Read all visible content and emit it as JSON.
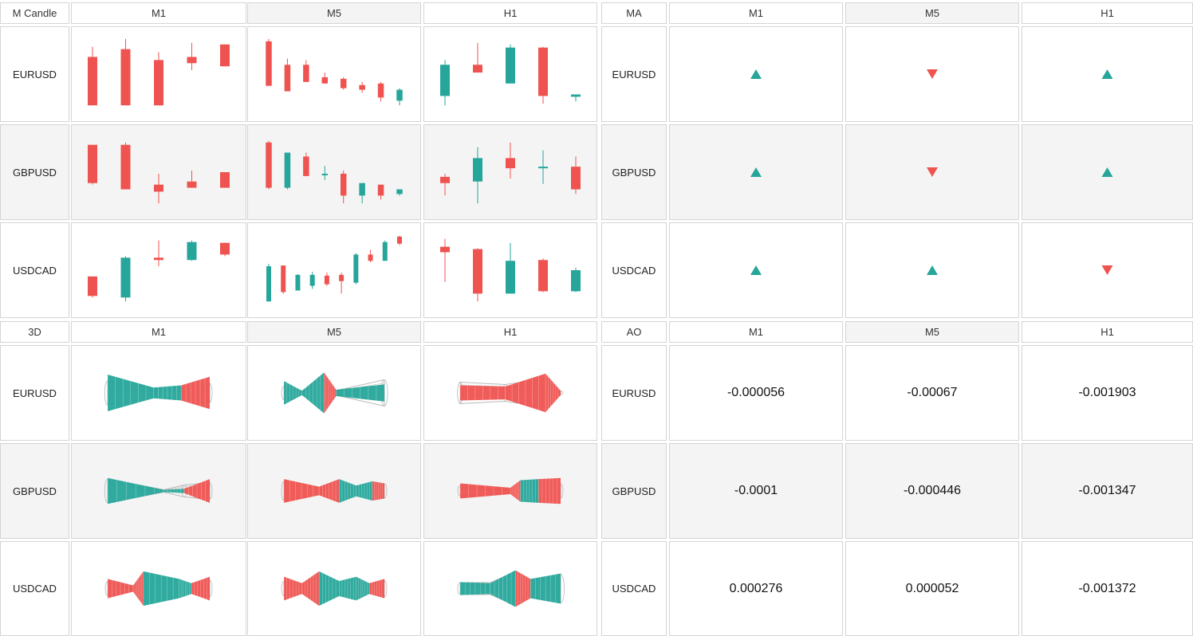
{
  "colors": {
    "bull": "#26a69a",
    "bear": "#ef5350",
    "bull_dark": "#1e7f74",
    "bear_dark": "#c03a3a",
    "wire": "#b8b8b8"
  },
  "timeframes": [
    "M1",
    "M5",
    "H1"
  ],
  "symbols": [
    "EURUSD",
    "GBPUSD",
    "USDCAD"
  ],
  "panels": {
    "candle": {
      "title": "M Candle",
      "candles": {
        "EURUSD": {
          "M1": [
            [
              0.35,
              0.85,
              0.72,
              0.1
            ],
            [
              0.12,
              0.95,
              0.82,
              0.1
            ],
            [
              0.18,
              0.78,
              0.68,
              0.1
            ],
            [
              0.55,
              0.9,
              0.72,
              0.64
            ],
            [
              0.6,
              0.88,
              0.88,
              0.6
            ]
          ],
          "M5": [
            [
              0.4,
              0.95,
              0.92,
              0.35
            ],
            [
              0.35,
              0.7,
              0.62,
              0.28
            ],
            [
              0.4,
              0.68,
              0.62,
              0.4
            ],
            [
              0.38,
              0.52,
              0.46,
              0.38
            ],
            [
              0.3,
              0.46,
              0.44,
              0.32
            ],
            [
              0.26,
              0.4,
              0.36,
              0.3
            ],
            [
              0.15,
              0.4,
              0.38,
              0.2
            ],
            [
              0.1,
              0.32,
              0.16,
              0.3
            ]
          ],
          "H1": [
            [
              0.1,
              0.68,
              0.22,
              0.62
            ],
            [
              0.55,
              0.9,
              0.62,
              0.52
            ],
            [
              0.38,
              0.88,
              0.38,
              0.84
            ],
            [
              0.12,
              0.85,
              0.84,
              0.22
            ],
            [
              0.15,
              0.24,
              0.21,
              0.24
            ]
          ]
        },
        "GBPUSD": {
          "M1": [
            [
              0.34,
              0.85,
              0.85,
              0.36
            ],
            [
              0.28,
              0.88,
              0.85,
              0.28
            ],
            [
              0.1,
              0.48,
              0.34,
              0.25
            ],
            [
              0.3,
              0.52,
              0.38,
              0.3
            ],
            [
              0.3,
              0.5,
              0.5,
              0.3
            ]
          ],
          "M5": [
            [
              0.28,
              0.9,
              0.88,
              0.3
            ],
            [
              0.28,
              0.75,
              0.3,
              0.75
            ],
            [
              0.45,
              0.75,
              0.7,
              0.45
            ],
            [
              0.4,
              0.58,
              0.48,
              0.48
            ],
            [
              0.1,
              0.52,
              0.48,
              0.2
            ],
            [
              0.1,
              0.36,
              0.2,
              0.36
            ],
            [
              0.15,
              0.34,
              0.34,
              0.2
            ],
            [
              0.2,
              0.28,
              0.22,
              0.28
            ]
          ],
          "H1": [
            [
              0.2,
              0.48,
              0.44,
              0.36
            ],
            [
              0.1,
              0.82,
              0.38,
              0.68
            ],
            [
              0.42,
              0.88,
              0.68,
              0.55
            ],
            [
              0.35,
              0.78,
              0.57,
              0.57
            ],
            [
              0.22,
              0.7,
              0.57,
              0.28
            ]
          ]
        },
        "USDCAD": {
          "M1": [
            [
              0.15,
              0.42,
              0.42,
              0.17
            ],
            [
              0.1,
              0.68,
              0.15,
              0.66
            ],
            [
              0.55,
              0.88,
              0.66,
              0.63
            ],
            [
              0.62,
              0.88,
              0.63,
              0.86
            ],
            [
              0.68,
              0.85,
              0.85,
              0.7
            ]
          ],
          "M5": [
            [
              0.1,
              0.58,
              0.1,
              0.55
            ],
            [
              0.2,
              0.56,
              0.56,
              0.22
            ],
            [
              0.24,
              0.45,
              0.24,
              0.44
            ],
            [
              0.26,
              0.48,
              0.3,
              0.44
            ],
            [
              0.3,
              0.47,
              0.43,
              0.32
            ],
            [
              0.2,
              0.47,
              0.44,
              0.36
            ],
            [
              0.32,
              0.72,
              0.34,
              0.7
            ],
            [
              0.6,
              0.76,
              0.7,
              0.62
            ],
            [
              0.62,
              0.88,
              0.62,
              0.86
            ],
            [
              0.82,
              0.94,
              0.93,
              0.84
            ]
          ],
          "H1": [
            [
              0.35,
              0.9,
              0.8,
              0.73
            ],
            [
              0.1,
              0.78,
              0.77,
              0.2
            ],
            [
              0.2,
              0.85,
              0.2,
              0.62
            ],
            [
              0.22,
              0.65,
              0.63,
              0.23
            ],
            [
              0.22,
              0.53,
              0.23,
              0.5
            ]
          ]
        }
      }
    },
    "ma": {
      "title": "MA",
      "signals": {
        "EURUSD": [
          "up",
          "down",
          "up"
        ],
        "GBPUSD": [
          "up",
          "down",
          "up"
        ],
        "USDCAD": [
          "up",
          "up",
          "down"
        ]
      }
    },
    "d3": {
      "title": "3D",
      "shapes": {
        "EURUSD": {
          "M1": [
            [
              [
                0.0,
                0.5,
                0.85,
                1
              ],
              [
                0.45,
                0.2,
                0.25,
                1
              ],
              [
                0.72,
                0.22,
                0.35,
                2
              ],
              [
                1.0,
                0.4,
                0.75,
                1
              ]
            ]
          ],
          "M5": [
            [
              [
                0.0,
                0.28,
                0.55,
                1
              ],
              [
                0.18,
                0.08,
                0.1,
                1
              ],
              [
                0.4,
                0.55,
                0.95,
                2
              ],
              [
                0.52,
                0.1,
                0.15,
                1
              ],
              [
                1.0,
                0.55,
                0.4,
                1
              ]
            ]
          ],
          "H1": [
            [
              [
                0.0,
                0.45,
                0.35,
                2
              ],
              [
                0.45,
                0.35,
                0.3,
                2
              ],
              [
                0.85,
                0.6,
                0.9,
                2
              ],
              [
                1.0,
                0.08,
                0.1,
                2
              ]
            ]
          ]
        },
        "GBPUSD": {
          "M1": [
            [
              [
                0.0,
                0.5,
                0.6,
                1
              ],
              [
                0.55,
                0.05,
                0.05,
                1
              ],
              [
                0.75,
                0.25,
                0.1,
                2
              ],
              [
                1.0,
                0.35,
                0.55,
                1
              ]
            ]
          ],
          "M5": [
            [
              [
                0.0,
                0.4,
                0.55,
                2
              ],
              [
                0.35,
                0.15,
                0.2,
                2
              ],
              [
                0.55,
                0.4,
                0.55,
                1
              ],
              [
                0.72,
                0.2,
                0.25,
                1
              ],
              [
                0.88,
                0.35,
                0.45,
                2
              ],
              [
                1.0,
                0.3,
                0.35,
                2
              ]
            ]
          ],
          "H1": [
            [
              [
                0.0,
                0.22,
                0.35,
                2
              ],
              [
                0.5,
                0.08,
                0.15,
                2
              ],
              [
                0.6,
                0.4,
                0.5,
                1
              ],
              [
                0.78,
                0.4,
                0.55,
                2
              ],
              [
                1.0,
                0.3,
                0.6,
                2
              ]
            ]
          ]
        },
        "USDCAD": {
          "M1": [
            [
              [
                0.0,
                0.3,
                0.45,
                2
              ],
              [
                0.25,
                0.1,
                0.15,
                2
              ],
              [
                0.35,
                0.5,
                0.8,
                1
              ],
              [
                0.7,
                0.35,
                0.45,
                1
              ],
              [
                0.82,
                0.2,
                0.25,
                2
              ],
              [
                1.0,
                0.35,
                0.55,
                1
              ]
            ]
          ],
          "M5": [
            [
              [
                0.0,
                0.3,
                0.55,
                2
              ],
              [
                0.18,
                0.2,
                0.25,
                2
              ],
              [
                0.35,
                0.55,
                0.8,
                1
              ],
              [
                0.55,
                0.2,
                0.35,
                1
              ],
              [
                0.72,
                0.4,
                0.55,
                1
              ],
              [
                0.85,
                0.2,
                0.25,
                2
              ],
              [
                1.0,
                0.35,
                0.45,
                1
              ]
            ]
          ],
          "H1": [
            [
              [
                0.0,
                0.25,
                0.3,
                1
              ],
              [
                0.3,
                0.25,
                0.25,
                1
              ],
              [
                0.55,
                0.7,
                0.85,
                2
              ],
              [
                0.7,
                0.35,
                0.45,
                1
              ],
              [
                1.0,
                0.6,
                0.7,
                1
              ]
            ]
          ]
        }
      }
    },
    "ao": {
      "title": "AO",
      "values": {
        "EURUSD": [
          "-0.000056",
          "-0.00067",
          "-0.001903"
        ],
        "GBPUSD": [
          "-0.0001",
          "-0.000446",
          "-0.001347"
        ],
        "USDCAD": [
          "0.000276",
          "0.000052",
          "-0.001372"
        ]
      }
    }
  }
}
